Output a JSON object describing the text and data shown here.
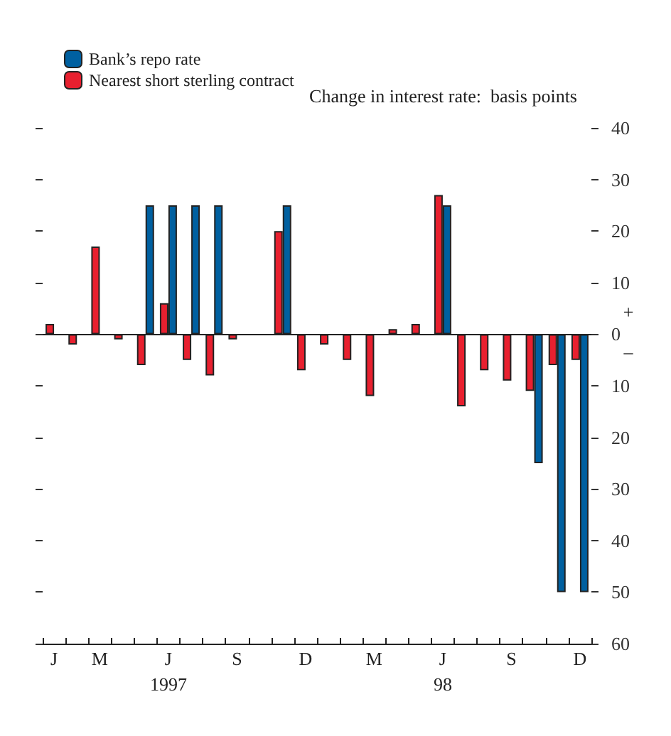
{
  "chart_data": {
    "type": "bar",
    "ylabel": "Change in interest rate:  basis points",
    "categories": [
      "J",
      null,
      "M",
      null,
      null,
      "J",
      null,
      null,
      "S",
      null,
      null,
      "D",
      null,
      null,
      "M",
      null,
      null,
      "J",
      null,
      null,
      "S",
      null,
      null,
      "D"
    ],
    "series": [
      {
        "name": "Nearest short sterling contract",
        "color": "#e8202f",
        "values": [
          2,
          -2,
          17,
          -1,
          -6,
          6,
          -5,
          -8,
          -1,
          null,
          20,
          -7,
          -2,
          -5,
          -12,
          1,
          2,
          27,
          -14,
          -7,
          -9,
          -11,
          -6,
          -5
        ]
      },
      {
        "name": "Bank’s repo rate",
        "color": "#0060a0",
        "values": [
          null,
          null,
          null,
          null,
          25,
          25,
          25,
          25,
          null,
          null,
          25,
          null,
          null,
          null,
          null,
          null,
          null,
          25,
          null,
          null,
          null,
          -25,
          -50,
          -50
        ]
      }
    ],
    "ylim": [
      -60,
      40
    ],
    "yticks": [
      {
        "value": -60,
        "label": "60"
      },
      {
        "value": -50,
        "label": "50"
      },
      {
        "value": -40,
        "label": "40"
      },
      {
        "value": -30,
        "label": "30"
      },
      {
        "value": -20,
        "label": "20"
      },
      {
        "value": -10,
        "label": "10"
      },
      0,
      10,
      20,
      30,
      40
    ],
    "annotations": [
      "1997",
      "98",
      "+",
      "–"
    ],
    "ref_lines": [
      {
        "axis": "y",
        "value": 0,
        "color": "#222222"
      }
    ],
    "legend": "top left",
    "grid": false
  }
}
